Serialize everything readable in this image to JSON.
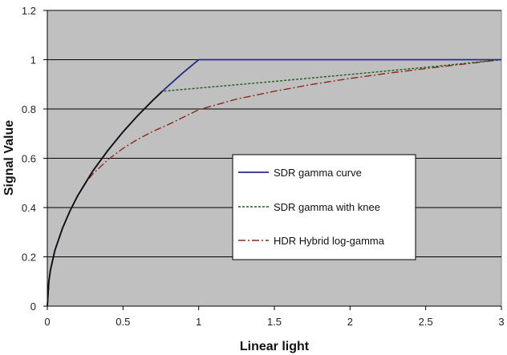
{
  "chart_data": {
    "type": "line",
    "title": "",
    "xlabel": "Linear light",
    "ylabel": "Signal Value",
    "xlim": [
      0,
      3
    ],
    "ylim": [
      0,
      1.2
    ],
    "x_ticks": [
      "0",
      "0.5",
      "1",
      "1.5",
      "2",
      "2.5",
      "3"
    ],
    "y_ticks": [
      "0",
      "0.2",
      "0.4",
      "0.6",
      "0.8",
      "1",
      "1.2"
    ],
    "grid": "horizontal",
    "legend_position": "center-right",
    "plot_background": "#c0c0c0",
    "series": [
      {
        "name": "SDR gamma curve",
        "color": "#2a2a8a",
        "style": "solid",
        "points": [
          [
            0,
            0
          ],
          [
            0.01,
            0.1
          ],
          [
            0.02,
            0.145
          ],
          [
            0.05,
            0.226
          ],
          [
            0.1,
            0.316
          ],
          [
            0.15,
            0.387
          ],
          [
            0.2,
            0.447
          ],
          [
            0.3,
            0.548
          ],
          [
            0.4,
            0.632
          ],
          [
            0.5,
            0.707
          ],
          [
            0.6,
            0.775
          ],
          [
            0.7,
            0.837
          ],
          [
            0.76,
            0.872
          ],
          [
            0.8,
            0.894
          ],
          [
            0.9,
            0.949
          ],
          [
            1.0,
            1.0
          ],
          [
            3.0,
            1.0
          ]
        ]
      },
      {
        "name": "SDR gamma with knee",
        "color": "#1e5e1e",
        "style": "dashed",
        "points": [
          [
            0,
            0
          ],
          [
            0.01,
            0.1
          ],
          [
            0.02,
            0.145
          ],
          [
            0.05,
            0.226
          ],
          [
            0.1,
            0.316
          ],
          [
            0.15,
            0.387
          ],
          [
            0.2,
            0.447
          ],
          [
            0.3,
            0.548
          ],
          [
            0.4,
            0.632
          ],
          [
            0.5,
            0.707
          ],
          [
            0.6,
            0.775
          ],
          [
            0.7,
            0.837
          ],
          [
            0.76,
            0.872
          ],
          [
            1.0,
            0.885
          ],
          [
            1.5,
            0.912
          ],
          [
            2.0,
            0.94
          ],
          [
            2.5,
            0.969
          ],
          [
            3.0,
            1.0
          ]
        ]
      },
      {
        "name": "HDR Hybrid log-gamma",
        "color": "#8b2a1a",
        "style": "dashdot",
        "points": [
          [
            0,
            0
          ],
          [
            0.01,
            0.1
          ],
          [
            0.02,
            0.145
          ],
          [
            0.05,
            0.226
          ],
          [
            0.1,
            0.316
          ],
          [
            0.15,
            0.387
          ],
          [
            0.2,
            0.447
          ],
          [
            0.25,
            0.5
          ],
          [
            0.3,
            0.536
          ],
          [
            0.4,
            0.594
          ],
          [
            0.5,
            0.64
          ],
          [
            0.6,
            0.678
          ],
          [
            0.7,
            0.71
          ],
          [
            0.8,
            0.737
          ],
          [
            1.0,
            0.797
          ],
          [
            1.25,
            0.84
          ],
          [
            1.5,
            0.872
          ],
          [
            1.75,
            0.9
          ],
          [
            2.0,
            0.924
          ],
          [
            2.25,
            0.945
          ],
          [
            2.5,
            0.964
          ],
          [
            2.75,
            0.982
          ],
          [
            3.0,
            1.0
          ]
        ]
      }
    ]
  }
}
